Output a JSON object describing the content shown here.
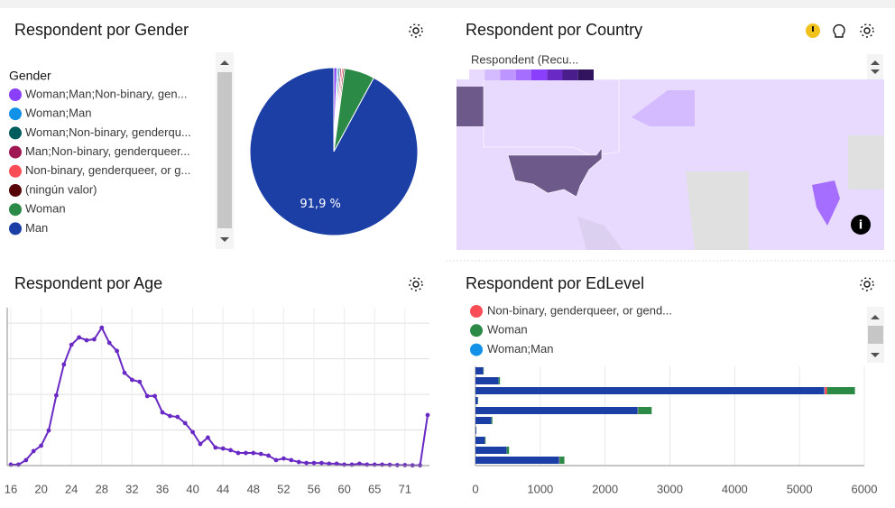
{
  "chart_data": [
    {
      "type": "pie",
      "title": "Respondent por Gender",
      "legend_title": "Gender",
      "categories": [
        "Woman;Man;Non-binary, gen...",
        "Woman;Man",
        "Woman;Non-binary, genderqu...",
        "Man;Non-binary, genderqueer...",
        "Non-binary, genderqueer, or g...",
        "(ningún valor)",
        "Woman",
        "Man"
      ],
      "values": [
        0.6,
        0.3,
        0.3,
        0.3,
        0.3,
        0.3,
        5.8,
        91.9
      ],
      "value_labels": [
        null,
        null,
        null,
        null,
        null,
        null,
        null,
        "91,9 %"
      ],
      "colors": [
        "#8a3ffc",
        "#1192e8",
        "#005d5d",
        "#9f1853",
        "#fa4d56",
        "#570408",
        "#2b8a45",
        "#1c3fa6"
      ]
    },
    {
      "type": "map",
      "title": "Respondent por Country",
      "legend_title": "Respondent (Recu...",
      "colors": [
        "#e8daff",
        "#d4bbff",
        "#be95ff",
        "#a56eff",
        "#8a3ffc",
        "#6929c4",
        "#491d8b",
        "#31135e"
      ]
    },
    {
      "type": "line",
      "title": "Respondent por Age",
      "categories": [
        "16",
        null,
        null,
        null,
        "20",
        null,
        null,
        null,
        "24",
        null,
        null,
        null,
        "28",
        null,
        null,
        null,
        "32",
        null,
        null,
        null,
        "36",
        null,
        null,
        null,
        "40",
        null,
        null,
        null,
        "44",
        null,
        null,
        null,
        "48",
        null,
        null,
        null,
        "52",
        null,
        null,
        null,
        "56",
        null,
        null,
        null,
        "60",
        null,
        null,
        null,
        "65",
        null,
        null,
        null,
        "71",
        null,
        null,
        null
      ],
      "values": [
        4,
        4,
        23,
        61,
        84,
        148,
        296,
        426,
        509,
        540,
        528,
        532,
        581,
        517,
        483,
        391,
        361,
        353,
        293,
        293,
        224,
        209,
        205,
        179,
        141,
        91,
        118,
        76,
        72,
        65,
        53,
        53,
        53,
        49,
        42,
        23,
        30,
        23,
        15,
        11,
        11,
        11,
        8,
        8,
        4,
        4,
        8,
        4,
        4,
        4,
        3,
        2,
        2,
        1,
        1,
        213
      ],
      "color": "#6929c4",
      "ylim": [
        0,
        650
      ],
      "grid_values": [
        0,
        150,
        300,
        450,
        600
      ],
      "grid": true
    },
    {
      "type": "hbar",
      "title": "Respondent por EdLevel",
      "categories": [
        null,
        null,
        null,
        null,
        null,
        null,
        null,
        null,
        null,
        null
      ],
      "series": [
        {
          "color": "#1c3fa6",
          "values": [
            120,
            355,
            5375,
            35,
            2500,
            245,
            12,
            145,
            480,
            1290
          ]
        },
        {
          "name": "Woman;Man",
          "color": "#1192e8",
          "values": [
            0,
            1,
            10,
            0,
            4,
            0,
            0,
            0,
            1,
            2
          ]
        },
        {
          "name": "Non-binary, genderqueer, or gend...",
          "color": "#fa4d56",
          "values": [
            1,
            2,
            40,
            0,
            5,
            1,
            0,
            1,
            2,
            5
          ]
        },
        {
          "name": "Woman",
          "color": "#2b8a45",
          "values": [
            6,
            20,
            430,
            4,
            210,
            15,
            2,
            10,
            35,
            75
          ]
        }
      ],
      "legend_order": [
        2,
        3,
        1
      ],
      "xlim": [
        0,
        6000
      ],
      "xticks": [
        0,
        1000,
        2000,
        3000,
        4000,
        5000,
        6000
      ],
      "grid": true
    }
  ]
}
